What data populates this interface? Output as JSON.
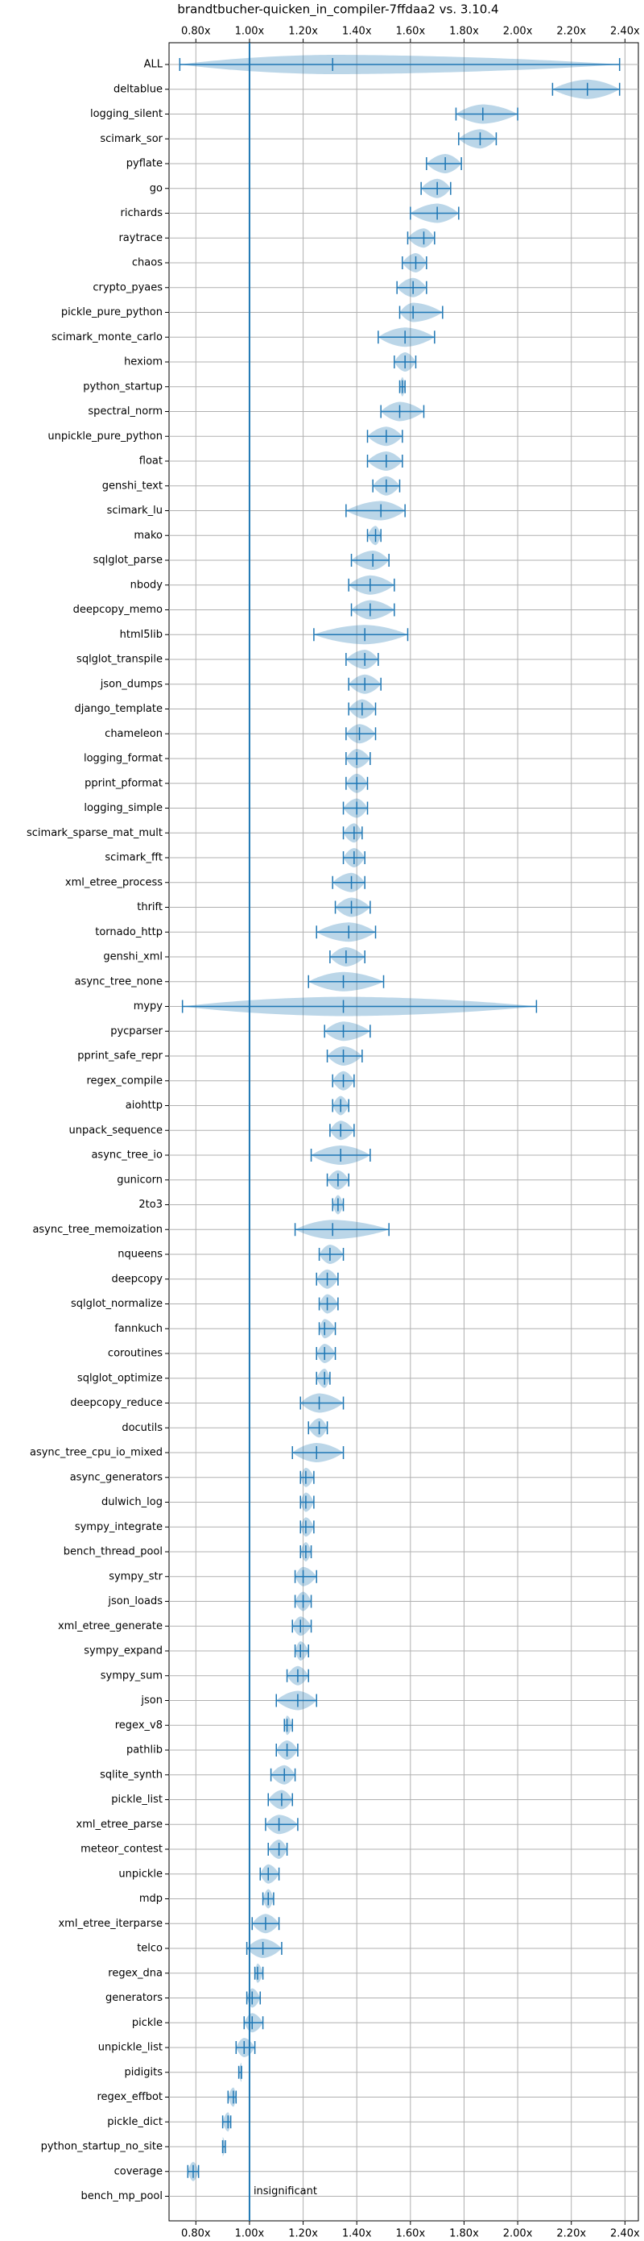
{
  "chart_data": {
    "type": "violin",
    "title": "brandtbucher-quicken_in_compiler-7ffdaa2 vs. 3.10.4",
    "color": "#1f77b4",
    "grid": true,
    "reference_line": 1.0,
    "annotation": "insignificant",
    "xlim": [
      0.7,
      2.45
    ],
    "xticks": [
      {
        "value": 0.8,
        "label": "0.80x"
      },
      {
        "value": 1.0,
        "label": "1.00x"
      },
      {
        "value": 1.2,
        "label": "1.20x"
      },
      {
        "value": 1.4,
        "label": "1.40x"
      },
      {
        "value": 1.6,
        "label": "1.60x"
      },
      {
        "value": 1.8,
        "label": "1.80x"
      },
      {
        "value": 2.0,
        "label": "2.00x"
      },
      {
        "value": 2.2,
        "label": "2.20x"
      },
      {
        "value": 2.4,
        "label": "2.40x"
      }
    ],
    "categories": [
      "ALL",
      "deltablue",
      "logging_silent",
      "scimark_sor",
      "pyflate",
      "go",
      "richards",
      "raytrace",
      "chaos",
      "crypto_pyaes",
      "pickle_pure_python",
      "scimark_monte_carlo",
      "hexiom",
      "python_startup",
      "spectral_norm",
      "unpickle_pure_python",
      "float",
      "genshi_text",
      "scimark_lu",
      "mako",
      "sqlglot_parse",
      "nbody",
      "deepcopy_memo",
      "html5lib",
      "sqlglot_transpile",
      "json_dumps",
      "django_template",
      "chameleon",
      "logging_format",
      "pprint_pformat",
      "logging_simple",
      "scimark_sparse_mat_mult",
      "scimark_fft",
      "xml_etree_process",
      "thrift",
      "tornado_http",
      "genshi_xml",
      "async_tree_none",
      "mypy",
      "pycparser",
      "pprint_safe_repr",
      "regex_compile",
      "aiohttp",
      "unpack_sequence",
      "async_tree_io",
      "gunicorn",
      "2to3",
      "async_tree_memoization",
      "nqueens",
      "deepcopy",
      "sqlglot_normalize",
      "fannkuch",
      "coroutines",
      "sqlglot_optimize",
      "deepcopy_reduce",
      "docutils",
      "async_tree_cpu_io_mixed",
      "async_generators",
      "dulwich_log",
      "sympy_integrate",
      "bench_thread_pool",
      "sympy_str",
      "json_loads",
      "xml_etree_generate",
      "sympy_expand",
      "sympy_sum",
      "json",
      "regex_v8",
      "pathlib",
      "sqlite_synth",
      "pickle_list",
      "xml_etree_parse",
      "meteor_contest",
      "unpickle",
      "mdp",
      "xml_etree_iterparse",
      "telco",
      "regex_dna",
      "generators",
      "pickle",
      "unpickle_list",
      "pidigits",
      "regex_effbot",
      "pickle_dict",
      "python_startup_no_site",
      "coverage",
      "bench_mp_pool"
    ],
    "min": [
      0.74,
      2.13,
      1.77,
      1.78,
      1.66,
      1.64,
      1.6,
      1.59,
      1.57,
      1.55,
      1.56,
      1.48,
      1.54,
      1.56,
      1.49,
      1.44,
      1.44,
      1.46,
      1.36,
      1.44,
      1.38,
      1.37,
      1.38,
      1.24,
      1.36,
      1.37,
      1.37,
      1.36,
      1.36,
      1.36,
      1.35,
      1.35,
      1.35,
      1.31,
      1.32,
      1.25,
      1.3,
      1.22,
      0.75,
      1.28,
      1.29,
      1.31,
      1.31,
      1.3,
      1.23,
      1.29,
      1.31,
      1.17,
      1.26,
      1.25,
      1.26,
      1.26,
      1.25,
      1.25,
      1.19,
      1.22,
      1.16,
      1.19,
      1.19,
      1.19,
      1.19,
      1.17,
      1.17,
      1.16,
      1.17,
      1.14,
      1.1,
      1.13,
      1.1,
      1.08,
      1.07,
      1.06,
      1.07,
      1.04,
      1.05,
      1.01,
      0.99,
      1.02,
      0.99,
      0.98,
      0.95,
      0.96,
      0.92,
      0.9,
      0.9,
      0.77,
      null
    ],
    "median": [
      1.31,
      2.26,
      1.87,
      1.86,
      1.73,
      1.7,
      1.7,
      1.65,
      1.62,
      1.61,
      1.61,
      1.58,
      1.58,
      1.57,
      1.56,
      1.51,
      1.51,
      1.51,
      1.49,
      1.47,
      1.46,
      1.45,
      1.45,
      1.43,
      1.43,
      1.43,
      1.42,
      1.41,
      1.4,
      1.4,
      1.4,
      1.39,
      1.39,
      1.38,
      1.38,
      1.37,
      1.36,
      1.35,
      1.35,
      1.35,
      1.35,
      1.35,
      1.34,
      1.34,
      1.34,
      1.33,
      1.33,
      1.31,
      1.3,
      1.29,
      1.29,
      1.28,
      1.28,
      1.28,
      1.26,
      1.26,
      1.25,
      1.21,
      1.21,
      1.21,
      1.21,
      1.2,
      1.2,
      1.19,
      1.19,
      1.18,
      1.18,
      1.14,
      1.14,
      1.13,
      1.12,
      1.11,
      1.11,
      1.07,
      1.07,
      1.06,
      1.05,
      1.03,
      1.01,
      1.01,
      0.98,
      0.97,
      0.94,
      0.92,
      0.9,
      0.79,
      null
    ],
    "max": [
      2.38,
      2.38,
      2.0,
      1.92,
      1.79,
      1.75,
      1.78,
      1.69,
      1.66,
      1.66,
      1.72,
      1.69,
      1.62,
      1.58,
      1.65,
      1.57,
      1.57,
      1.56,
      1.58,
      1.49,
      1.52,
      1.54,
      1.54,
      1.59,
      1.48,
      1.49,
      1.47,
      1.47,
      1.45,
      1.44,
      1.44,
      1.42,
      1.43,
      1.43,
      1.45,
      1.47,
      1.43,
      1.5,
      2.07,
      1.45,
      1.42,
      1.39,
      1.37,
      1.39,
      1.45,
      1.37,
      1.35,
      1.52,
      1.35,
      1.33,
      1.33,
      1.32,
      1.32,
      1.3,
      1.35,
      1.29,
      1.35,
      1.24,
      1.24,
      1.24,
      1.23,
      1.25,
      1.23,
      1.23,
      1.22,
      1.22,
      1.25,
      1.16,
      1.18,
      1.17,
      1.16,
      1.18,
      1.14,
      1.11,
      1.09,
      1.11,
      1.12,
      1.05,
      1.04,
      1.05,
      1.02,
      0.97,
      0.95,
      0.93,
      0.91,
      0.81,
      null
    ]
  }
}
